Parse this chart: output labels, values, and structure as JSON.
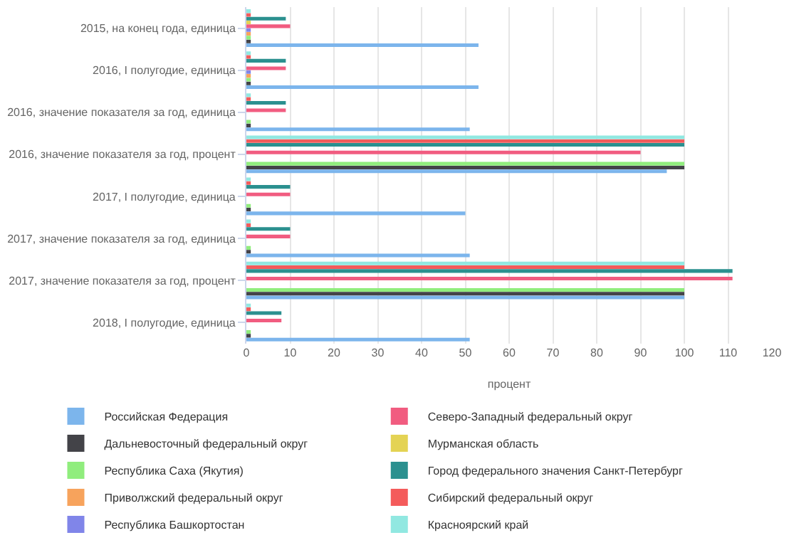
{
  "chart_data": {
    "type": "bar",
    "orientation": "horizontal",
    "xlabel": "процент",
    "categories": [
      "2015, на конец года, единица",
      "2016, I полугодие, единица",
      "2016, значение показателя за год, единица",
      "2016, значение показателя за год, процент",
      "2017, I полугодие, единица",
      "2017, значение показателя за год, единица",
      "2017, значение показателя за год, процент",
      "2018, I полугодие, единица"
    ],
    "series": [
      {
        "name": "Российская Федерация",
        "color": "#7cb5ec",
        "values": [
          53,
          53,
          51,
          96,
          50,
          51,
          100,
          51
        ]
      },
      {
        "name": "Дальневосточный федеральный округ",
        "color": "#434348",
        "values": [
          1,
          1,
          1,
          100,
          1,
          1,
          100,
          1
        ]
      },
      {
        "name": "Республика Саха (Якутия)",
        "color": "#90ed7d",
        "values": [
          1,
          1,
          1,
          100,
          1,
          1,
          100,
          1
        ]
      },
      {
        "name": "Приволжский федеральный округ",
        "color": "#f7a35c",
        "values": [
          1,
          1,
          null,
          null,
          null,
          null,
          null,
          null
        ]
      },
      {
        "name": "Республика Башкортостан",
        "color": "#8085e9",
        "values": [
          1,
          1,
          null,
          null,
          null,
          null,
          null,
          null
        ]
      },
      {
        "name": "Северо-Западный федеральный округ",
        "color": "#f15c80",
        "values": [
          10,
          9,
          9,
          90,
          10,
          10,
          111,
          8
        ]
      },
      {
        "name": "Мурманская область",
        "color": "#e4d354",
        "values": [
          1,
          null,
          null,
          null,
          null,
          null,
          null,
          null
        ]
      },
      {
        "name": "Город федерального значения Санкт-Петербург",
        "color": "#2b908f",
        "values": [
          9,
          9,
          9,
          100,
          10,
          10,
          111,
          8
        ]
      },
      {
        "name": "Сибирский федеральный округ",
        "color": "#f45b5b",
        "values": [
          1,
          1,
          1,
          100,
          1,
          1,
          100,
          1
        ]
      },
      {
        "name": "Красноярский край",
        "color": "#91e8e1",
        "values": [
          1,
          1,
          1,
          100,
          1,
          1,
          100,
          1
        ]
      }
    ],
    "xlim": [
      0,
      120
    ],
    "xticks": [
      0,
      10,
      20,
      30,
      40,
      50,
      60,
      70,
      80,
      90,
      100,
      110,
      120
    ],
    "grid": "x",
    "legend": "bottom"
  }
}
